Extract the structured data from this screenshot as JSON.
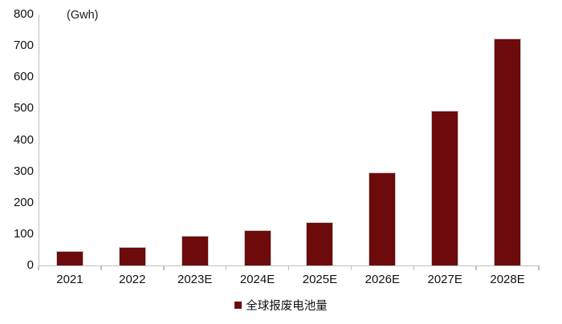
{
  "chart_data": {
    "type": "bar",
    "title": "",
    "unit_label": "(Gwh)",
    "categories": [
      "2021",
      "2022",
      "2023E",
      "2024E",
      "2025E",
      "2026E",
      "2027E",
      "2028E"
    ],
    "series": [
      {
        "name": "全球报废电池量",
        "values": [
          45,
          60,
          95,
          113,
          138,
          297,
          494,
          723
        ]
      }
    ],
    "xlabel": "",
    "ylabel": "",
    "ylim": [
      0,
      800
    ],
    "yticks": [
      0,
      100,
      200,
      300,
      400,
      500,
      600,
      700,
      800
    ],
    "grid": false,
    "legend_position": "bottom",
    "colors": {
      "bar_fill": "#6C0A0C",
      "bar_border": "#c9c9c9",
      "axis": "#bfbfbf",
      "text": "#111111"
    }
  }
}
